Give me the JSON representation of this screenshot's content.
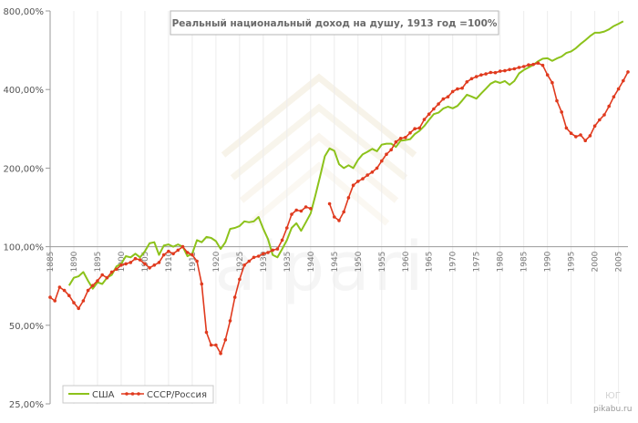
{
  "chart_data": {
    "type": "line",
    "title": "Реальный национальный доход на душу, 1913 год =100%",
    "y_scale": "log",
    "ylim": [
      25,
      800
    ],
    "xlim": [
      1885,
      2007
    ],
    "y_ticks": [
      {
        "value": 25,
        "label": "25,00%"
      },
      {
        "value": 50,
        "label": "50,00%"
      },
      {
        "value": 100,
        "label": "100,00%"
      },
      {
        "value": 200,
        "label": "200,00%"
      },
      {
        "value": 400,
        "label": "400,00%"
      },
      {
        "value": 800,
        "label": "800,00%"
      }
    ],
    "x_ticks": [
      "1885",
      "1890",
      "1895",
      "1900",
      "1905",
      "1910",
      "1915",
      "1920",
      "1925",
      "1930",
      "1935",
      "1940",
      "1945",
      "1950",
      "1955",
      "1960",
      "1965",
      "1970",
      "1975",
      "1980",
      "1985",
      "1990",
      "1995",
      "2000",
      "2005"
    ],
    "grid": "vertical",
    "legend_position": "bottom-left",
    "series": [
      {
        "name": "США",
        "color": "#8cc21b",
        "markers": false,
        "points": [
          [
            1885,
            60
          ],
          [
            1887,
            66
          ],
          [
            1889,
            71
          ],
          [
            1890,
            76
          ],
          [
            1891,
            77
          ],
          [
            1892,
            80
          ],
          [
            1893,
            74
          ],
          [
            1894,
            69
          ],
          [
            1895,
            73
          ],
          [
            1896,
            72
          ],
          [
            1897,
            76
          ],
          [
            1898,
            78
          ],
          [
            1899,
            84
          ],
          [
            1900,
            86
          ],
          [
            1901,
            92
          ],
          [
            1902,
            91
          ],
          [
            1903,
            94
          ],
          [
            1904,
            91
          ],
          [
            1905,
            96
          ],
          [
            1906,
            103
          ],
          [
            1907,
            104
          ],
          [
            1908,
            93
          ],
          [
            1909,
            101
          ],
          [
            1910,
            102
          ],
          [
            1911,
            100
          ],
          [
            1912,
            102
          ],
          [
            1913,
            100
          ],
          [
            1914,
            92
          ],
          [
            1915,
            94
          ],
          [
            1916,
            106
          ],
          [
            1917,
            104
          ],
          [
            1918,
            109
          ],
          [
            1919,
            108
          ],
          [
            1920,
            105
          ],
          [
            1921,
            98
          ],
          [
            1922,
            104
          ],
          [
            1923,
            117
          ],
          [
            1924,
            118
          ],
          [
            1925,
            120
          ],
          [
            1926,
            125
          ],
          [
            1927,
            124
          ],
          [
            1928,
            125
          ],
          [
            1929,
            130
          ],
          [
            1930,
            117
          ],
          [
            1931,
            107
          ],
          [
            1932,
            93
          ],
          [
            1933,
            91
          ],
          [
            1934,
            98
          ],
          [
            1935,
            106
          ],
          [
            1936,
            118
          ],
          [
            1937,
            123
          ],
          [
            1938,
            115
          ],
          [
            1939,
            124
          ],
          [
            1940,
            134
          ],
          [
            1941,
            157
          ],
          [
            1942,
            186
          ],
          [
            1943,
            222
          ],
          [
            1944,
            238
          ],
          [
            1945,
            233
          ],
          [
            1946,
            207
          ],
          [
            1947,
            200
          ],
          [
            1948,
            205
          ],
          [
            1949,
            200
          ],
          [
            1950,
            215
          ],
          [
            1951,
            226
          ],
          [
            1952,
            231
          ],
          [
            1953,
            237
          ],
          [
            1954,
            232
          ],
          [
            1955,
            246
          ],
          [
            1956,
            248
          ],
          [
            1957,
            248
          ],
          [
            1958,
            241
          ],
          [
            1959,
            255
          ],
          [
            1960,
            256
          ],
          [
            1961,
            258
          ],
          [
            1962,
            270
          ],
          [
            1963,
            278
          ],
          [
            1964,
            290
          ],
          [
            1965,
            306
          ],
          [
            1966,
            322
          ],
          [
            1967,
            326
          ],
          [
            1968,
            338
          ],
          [
            1969,
            344
          ],
          [
            1970,
            339
          ],
          [
            1971,
            346
          ],
          [
            1972,
            363
          ],
          [
            1973,
            382
          ],
          [
            1974,
            376
          ],
          [
            1975,
            369
          ],
          [
            1976,
            386
          ],
          [
            1977,
            403
          ],
          [
            1978,
            421
          ],
          [
            1979,
            430
          ],
          [
            1980,
            424
          ],
          [
            1981,
            431
          ],
          [
            1982,
            417
          ],
          [
            1983,
            431
          ],
          [
            1984,
            461
          ],
          [
            1985,
            475
          ],
          [
            1986,
            486
          ],
          [
            1987,
            497
          ],
          [
            1988,
            513
          ],
          [
            1989,
            525
          ],
          [
            1990,
            527
          ],
          [
            1991,
            515
          ],
          [
            1992,
            526
          ],
          [
            1993,
            535
          ],
          [
            1994,
            552
          ],
          [
            1995,
            560
          ],
          [
            1996,
            576
          ],
          [
            1997,
            598
          ],
          [
            1998,
            618
          ],
          [
            1999,
            641
          ],
          [
            2000,
            660
          ],
          [
            2001,
            660
          ],
          [
            2002,
            667
          ],
          [
            2003,
            680
          ],
          [
            2004,
            700
          ],
          [
            2005,
            714
          ],
          [
            2006,
            730
          ]
        ]
      },
      {
        "name": "СССР/Россия",
        "color": "#e03a1e",
        "markers": true,
        "points": [
          [
            1885,
            64
          ],
          [
            1886,
            62
          ],
          [
            1887,
            70
          ],
          [
            1888,
            68
          ],
          [
            1889,
            65
          ],
          [
            1890,
            61
          ],
          [
            1891,
            58
          ],
          [
            1892,
            62
          ],
          [
            1893,
            68
          ],
          [
            1894,
            71
          ],
          [
            1895,
            74
          ],
          [
            1896,
            78
          ],
          [
            1897,
            76
          ],
          [
            1898,
            80
          ],
          [
            1899,
            82
          ],
          [
            1900,
            85
          ],
          [
            1901,
            86
          ],
          [
            1902,
            87
          ],
          [
            1903,
            90
          ],
          [
            1904,
            89
          ],
          [
            1905,
            86
          ],
          [
            1906,
            83
          ],
          [
            1907,
            85
          ],
          [
            1908,
            87
          ],
          [
            1909,
            93
          ],
          [
            1910,
            96
          ],
          [
            1911,
            94
          ],
          [
            1912,
            97
          ],
          [
            1913,
            100
          ],
          [
            1914,
            95
          ],
          [
            1915,
            93
          ],
          [
            1916,
            88
          ],
          [
            1917,
            72
          ],
          [
            1918,
            47
          ],
          [
            1919,
            42
          ],
          [
            1920,
            42
          ],
          [
            1921,
            39
          ],
          [
            1922,
            44
          ],
          [
            1923,
            52
          ],
          [
            1924,
            64
          ],
          [
            1925,
            75
          ],
          [
            1926,
            85
          ],
          [
            1927,
            88
          ],
          [
            1928,
            91
          ],
          [
            1929,
            92
          ],
          [
            1930,
            94
          ],
          [
            1931,
            95
          ],
          [
            1932,
            97
          ],
          [
            1933,
            98
          ],
          [
            1934,
            106
          ],
          [
            1935,
            118
          ],
          [
            1936,
            133
          ],
          [
            1937,
            138
          ],
          [
            1938,
            137
          ],
          [
            1939,
            142
          ],
          [
            1940,
            140
          ],
          [
            1944,
            146
          ],
          [
            1945,
            130
          ],
          [
            1946,
            126
          ],
          [
            1947,
            136
          ],
          [
            1948,
            154
          ],
          [
            1949,
            172
          ],
          [
            1950,
            178
          ],
          [
            1951,
            182
          ],
          [
            1952,
            188
          ],
          [
            1953,
            193
          ],
          [
            1954,
            200
          ],
          [
            1955,
            213
          ],
          [
            1956,
            226
          ],
          [
            1957,
            235
          ],
          [
            1958,
            252
          ],
          [
            1959,
            260
          ],
          [
            1960,
            262
          ],
          [
            1961,
            273
          ],
          [
            1962,
            283
          ],
          [
            1963,
            285
          ],
          [
            1964,
            307
          ],
          [
            1965,
            322
          ],
          [
            1966,
            337
          ],
          [
            1967,
            352
          ],
          [
            1968,
            368
          ],
          [
            1969,
            375
          ],
          [
            1970,
            393
          ],
          [
            1971,
            402
          ],
          [
            1972,
            405
          ],
          [
            1973,
            428
          ],
          [
            1974,
            440
          ],
          [
            1975,
            448
          ],
          [
            1976,
            455
          ],
          [
            1977,
            459
          ],
          [
            1978,
            465
          ],
          [
            1979,
            464
          ],
          [
            1980,
            470
          ],
          [
            1981,
            472
          ],
          [
            1982,
            477
          ],
          [
            1983,
            480
          ],
          [
            1984,
            486
          ],
          [
            1985,
            490
          ],
          [
            1986,
            497
          ],
          [
            1987,
            499
          ],
          [
            1988,
            505
          ],
          [
            1989,
            495
          ],
          [
            1990,
            455
          ],
          [
            1991,
            425
          ],
          [
            1992,
            362
          ],
          [
            1993,
            328
          ],
          [
            1994,
            285
          ],
          [
            1995,
            272
          ],
          [
            1996,
            264
          ],
          [
            1997,
            268
          ],
          [
            1998,
            255
          ],
          [
            1999,
            266
          ],
          [
            2000,
            290
          ],
          [
            2001,
            306
          ],
          [
            2002,
            320
          ],
          [
            2003,
            345
          ],
          [
            2004,
            375
          ],
          [
            2005,
            402
          ],
          [
            2006,
            432
          ],
          [
            2007,
            467
          ]
        ]
      }
    ]
  },
  "watermark": {
    "brand": "alpari",
    "corner_mark": "ЮГ",
    "footer": "pikabu.ru"
  }
}
